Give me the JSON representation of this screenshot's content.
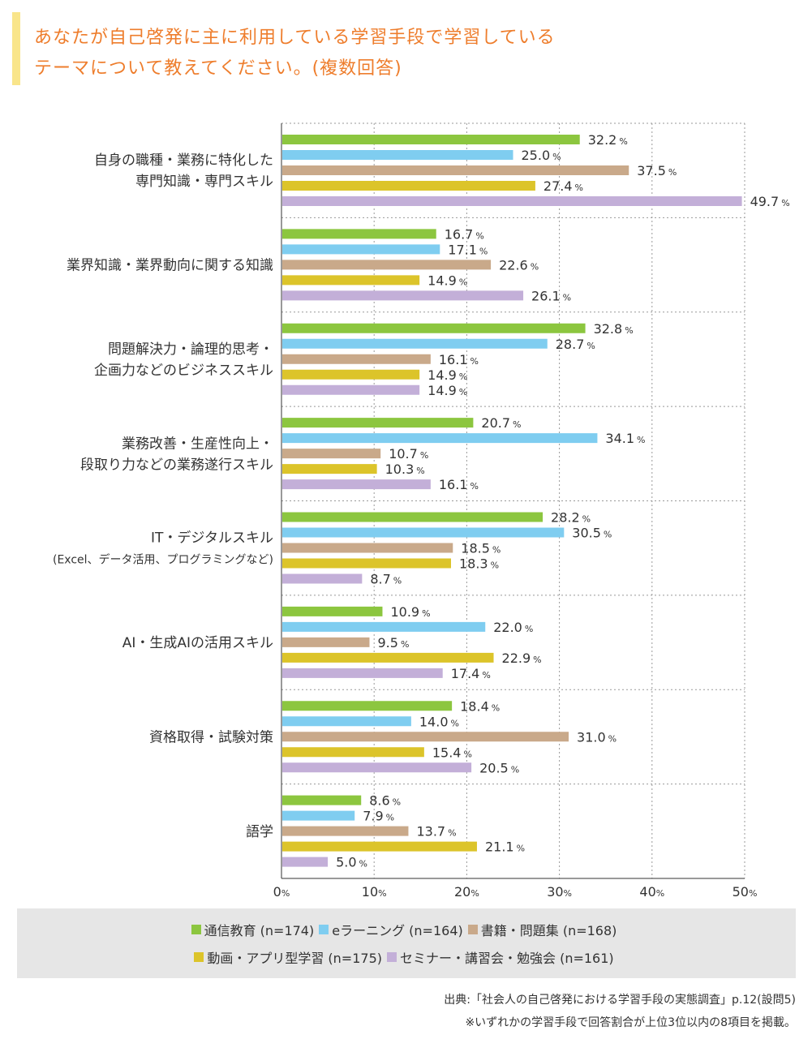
{
  "title": {
    "line1": "あなたが自己啓発に主に利用している学習手段で学習している",
    "line2": "テーマについて教えてください。(複数回答)"
  },
  "chart_data": {
    "type": "bar",
    "orientation": "horizontal",
    "xlim": [
      0,
      50
    ],
    "xticks": [
      0,
      10,
      20,
      30,
      40,
      50
    ],
    "tick_suffix": "%",
    "value_suffix": "%",
    "grid": true,
    "legend_position": "bottom",
    "categories": [
      [
        "自身の職種・業務に特化した",
        "専門知識・専門スキル"
      ],
      [
        "業界知識・業界動向に関する知識"
      ],
      [
        "問題解決力・論理的思考・",
        "企画力などのビジネススキル"
      ],
      [
        "業務改善・生産性向上・",
        "段取り力などの業務遂行スキル"
      ],
      [
        "IT・デジタルスキル",
        "(Excel、データ活用、プログラミングなど)"
      ],
      [
        "AI・生成AIの活用スキル"
      ],
      [
        "資格取得・試験対策"
      ],
      [
        "語学"
      ]
    ],
    "series": [
      {
        "name": "通信教育",
        "n": "(n=174)",
        "color": "#8cc63f",
        "values": [
          32.2,
          16.7,
          32.8,
          20.7,
          28.2,
          10.9,
          18.4,
          8.6
        ]
      },
      {
        "name": "eラーニング",
        "n": "(n=164)",
        "color": "#7fcdf0",
        "values": [
          25.0,
          17.1,
          28.7,
          34.1,
          30.5,
          22.0,
          14.0,
          7.9
        ]
      },
      {
        "name": "書籍・問題集",
        "n": "(n=168)",
        "color": "#c9a98a",
        "values": [
          37.5,
          22.6,
          16.1,
          10.7,
          18.5,
          9.5,
          31.0,
          13.7
        ]
      },
      {
        "name": "動画・アプリ型学習",
        "n": "(n=175)",
        "color": "#dcc42a",
        "values": [
          27.4,
          14.9,
          14.9,
          10.3,
          18.3,
          22.9,
          15.4,
          21.1
        ]
      },
      {
        "name": "セミナー・講習会・勉強会",
        "n": "(n=161)",
        "color": "#c3afd8",
        "values": [
          49.7,
          26.1,
          14.9,
          16.1,
          8.7,
          17.4,
          20.5,
          5.0
        ]
      }
    ]
  },
  "source": "出典:「社会人の自己啓発における学習手段の実態調査」p.12(設問5)",
  "disclaimer": "※いずれかの学習手段で回答割合が上位3位以内の8項目を掲載。"
}
